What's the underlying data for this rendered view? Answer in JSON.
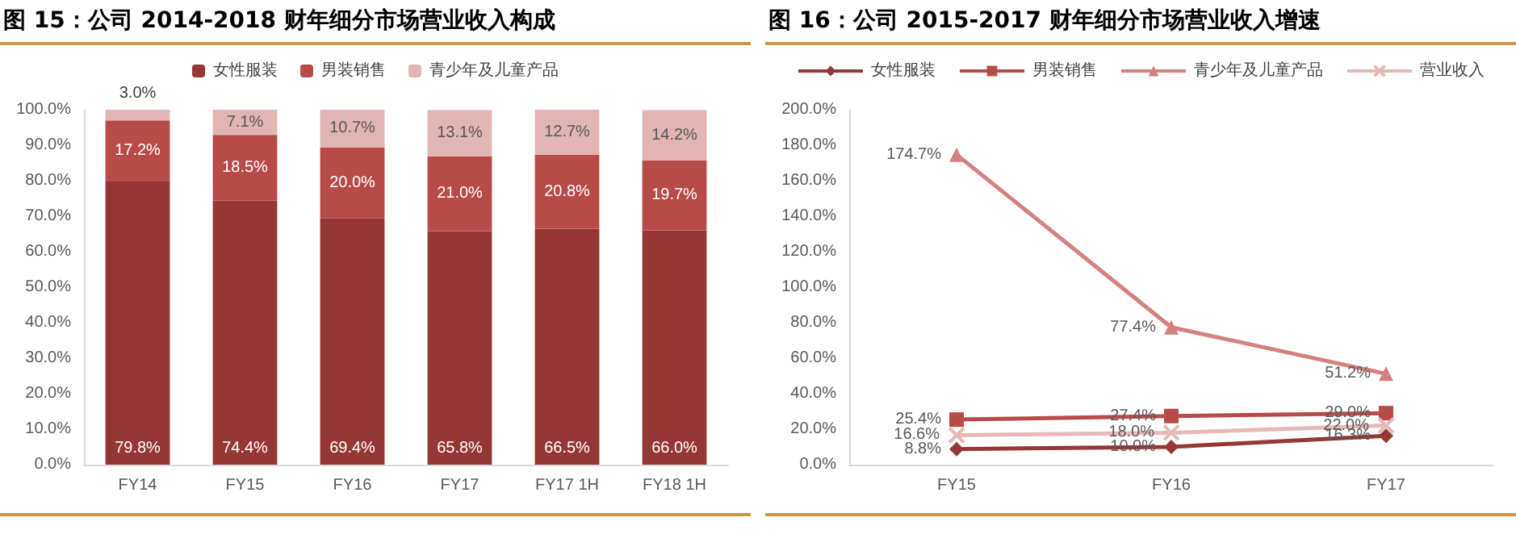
{
  "chart_data": [
    {
      "type": "bar",
      "title": "图 15：公司 2014-2018 财年细分市场营业收入构成",
      "categories": [
        "FY14",
        "FY15",
        "FY16",
        "FY17",
        "FY17 1H",
        "FY18 1H"
      ],
      "stacked": true,
      "legend": "top",
      "grid": false,
      "series": [
        {
          "name": "女性服装",
          "color": "#953735",
          "values": [
            79.8,
            74.4,
            69.4,
            65.8,
            66.5,
            66.0
          ],
          "value_labels": [
            "79.8%",
            "74.4%",
            "69.4%",
            "65.8%",
            "66.5%",
            "66.0%"
          ]
        },
        {
          "name": "男装销售",
          "color": "#b84a47",
          "values": [
            17.2,
            18.5,
            20.0,
            21.0,
            20.8,
            19.7
          ],
          "value_labels": [
            "17.2%",
            "18.5%",
            "20.0%",
            "21.0%",
            "20.8%",
            "19.7%"
          ]
        },
        {
          "name": "青少年及儿童产品",
          "color": "#e0b5b4",
          "values": [
            3.0,
            7.1,
            10.7,
            13.1,
            12.7,
            14.2
          ],
          "value_labels": [
            "3.0%",
            "7.1%",
            "10.7%",
            "13.1%",
            "12.7%",
            "14.2%"
          ]
        }
      ],
      "ylim": [
        0,
        100
      ],
      "yticks": [
        {
          "value": 0,
          "label": "0.0%"
        },
        {
          "value": 10,
          "label": "10.0%"
        },
        {
          "value": 20,
          "label": "20.0%"
        },
        {
          "value": 30,
          "label": "30.0%"
        },
        {
          "value": 40,
          "label": "40.0%"
        },
        {
          "value": 50,
          "label": "50.0%"
        },
        {
          "value": 60,
          "label": "60.0%"
        },
        {
          "value": 70,
          "label": "70.0%"
        },
        {
          "value": 80,
          "label": "80.0%"
        },
        {
          "value": 90,
          "label": "90.0%"
        },
        {
          "value": 100,
          "label": "100.0%"
        }
      ]
    },
    {
      "type": "line",
      "title": "图 16：公司 2015-2017 财年细分市场营业收入增速",
      "categories": [
        "FY15",
        "FY16",
        "FY17"
      ],
      "legend": "top",
      "grid": false,
      "series": [
        {
          "name": "女性服装",
          "color": "#953735",
          "marker": "diamond",
          "values": [
            8.8,
            10.0,
            16.3
          ],
          "value_labels": [
            "8.8%",
            "10.0%",
            "16.3%"
          ]
        },
        {
          "name": "男装销售",
          "color": "#b84a47",
          "marker": "square",
          "values": [
            25.4,
            27.4,
            29.0
          ],
          "value_labels": [
            "25.4%",
            "27.4%",
            "29.0%"
          ]
        },
        {
          "name": "青少年及儿童产品",
          "color": "#d4807e",
          "marker": "triangle",
          "values": [
            174.7,
            77.4,
            51.2
          ],
          "value_labels": [
            "174.7%",
            "77.4%",
            "51.2%"
          ]
        },
        {
          "name": "营业收入",
          "color": "#e6b9b8",
          "marker": "cross",
          "values": [
            16.6,
            18.0,
            22.0
          ],
          "value_labels": [
            "16.6%",
            "18.0%",
            "22.0%"
          ]
        }
      ],
      "ylim": [
        0,
        200
      ],
      "yticks": [
        {
          "value": 0,
          "label": "0.0%"
        },
        {
          "value": 20,
          "label": "20.0%"
        },
        {
          "value": 40,
          "label": "40.0%"
        },
        {
          "value": 60,
          "label": "60.0%"
        },
        {
          "value": 80,
          "label": "80.0%"
        },
        {
          "value": 100,
          "label": "100.0%"
        },
        {
          "value": 120,
          "label": "120.0%"
        },
        {
          "value": 140,
          "label": "140.0%"
        },
        {
          "value": 160,
          "label": "160.0%"
        },
        {
          "value": 180,
          "label": "180.0%"
        },
        {
          "value": 200,
          "label": "200.0%"
        }
      ]
    }
  ]
}
